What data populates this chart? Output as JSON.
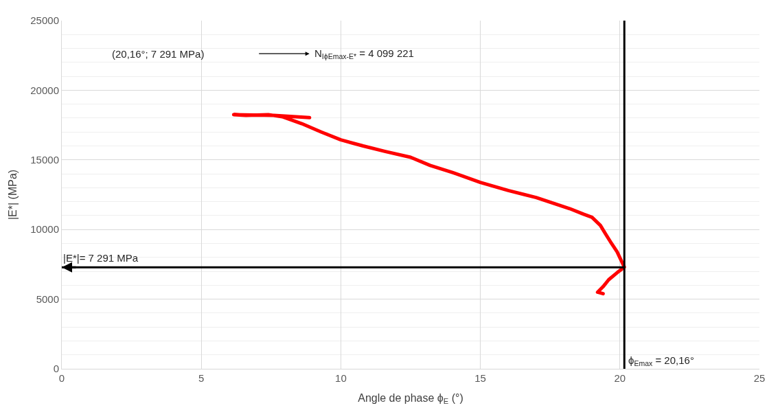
{
  "chart_data": {
    "type": "line",
    "xlabel": "Angle de phase ϕ$_{E}$ (°)",
    "ylabel": "|E*| (MPa)",
    "xlim": [
      0,
      25
    ],
    "xticks": [
      0,
      5,
      10,
      15,
      20,
      25
    ],
    "ylim": [
      0,
      25000
    ],
    "yticks": [
      0,
      5000,
      10000,
      15000,
      20000,
      25000
    ],
    "grid": true,
    "marker": "none",
    "line_style": "solid",
    "series": [
      {
        "color": "#ff0000",
        "x": [
          8.88,
          7.6,
          6.16,
          6.6,
          7.4,
          7.9,
          8.6,
          9.3,
          10.0,
          10.8,
          11.6,
          12.5,
          13.2,
          14.0,
          15.0,
          16.0,
          17.0,
          17.5,
          18.2,
          18.7,
          19.0,
          19.3,
          19.5,
          19.7,
          19.9,
          20.16,
          19.9,
          19.6,
          19.4,
          19.2,
          19.4
        ],
        "values": [
          18030,
          18200,
          18250,
          18200,
          18250,
          18100,
          17600,
          17000,
          16440,
          16000,
          15600,
          15190,
          14600,
          14100,
          13380,
          12800,
          12300,
          11960,
          11500,
          11100,
          10880,
          10300,
          9640,
          9000,
          8400,
          7300,
          6900,
          6400,
          5900,
          5500,
          5390
        ]
      }
    ],
    "ref_lines": [
      {
        "axis": "x",
        "value": 20.16,
        "label": "ϕ$_{Emax}$ = 20,16°",
        "color": "#000000"
      },
      {
        "axis": "y",
        "value": 7291,
        "label": "|E*|= 7 291 MPa",
        "color": "#000000"
      }
    ],
    "annotations": [
      "(20,16°; 7 291 MPa)",
      "N$_{IϕEmax-E*}$ = 4 099 221"
    ]
  }
}
